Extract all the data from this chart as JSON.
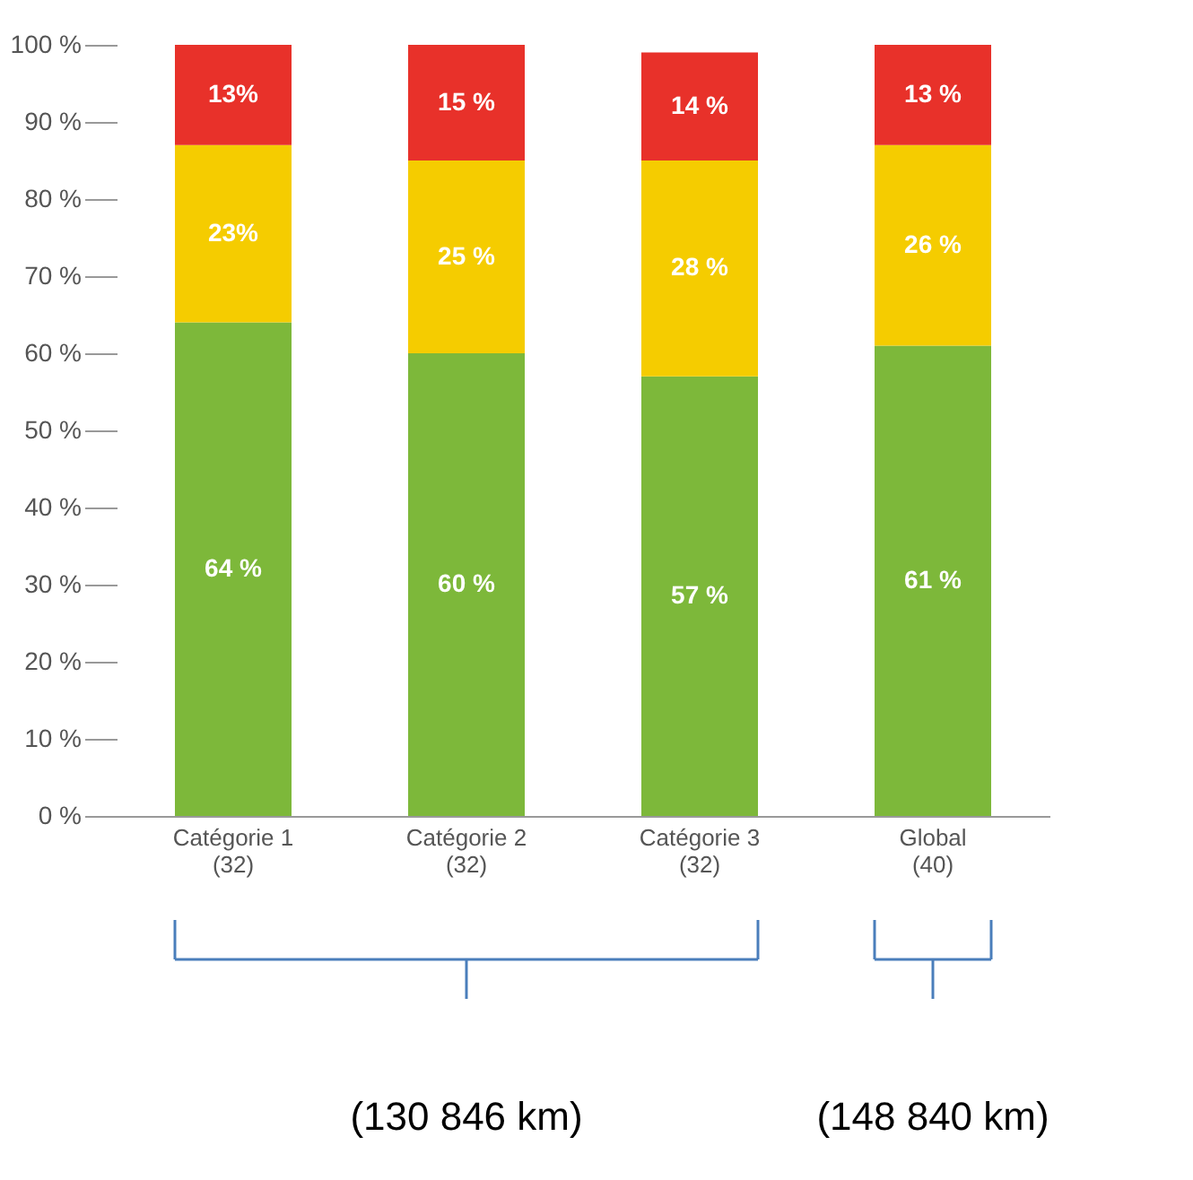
{
  "chart_data": {
    "type": "bar",
    "stacked": true,
    "categories": [
      "Catégorie 1\n(32)",
      "Catégorie 2\n(32)",
      "Catégorie 3\n(32)",
      "Global\n(40)"
    ],
    "series": [
      {
        "color": "#7db83a",
        "values": [
          64,
          60,
          57,
          61
        ]
      },
      {
        "color": "#f5cc00",
        "values": [
          23,
          25,
          28,
          26
        ]
      },
      {
        "color": "#e8312a",
        "values": [
          13,
          15,
          14,
          13
        ]
      }
    ],
    "value_labels": [
      [
        "64 %",
        "60 %",
        "57 %",
        "61 %"
      ],
      [
        "23%",
        "25 %",
        "28 %",
        "26 %"
      ],
      [
        "13%",
        "15 %",
        "14 %",
        "13 %"
      ]
    ],
    "ylim": [
      0,
      100
    ],
    "yticks": [
      {
        "value": 0,
        "label": "0 %"
      },
      {
        "value": 10,
        "label": "10 %"
      },
      {
        "value": 20,
        "label": "20 %"
      },
      {
        "value": 30,
        "label": "30 %"
      },
      {
        "value": 40,
        "label": "40 %"
      },
      {
        "value": 50,
        "label": "50 %"
      },
      {
        "value": 60,
        "label": "60 %"
      },
      {
        "value": 70,
        "label": "70 %"
      },
      {
        "value": 80,
        "label": "80 %"
      },
      {
        "value": 90,
        "label": "90 %"
      },
      {
        "value": 100,
        "label": "100 %"
      }
    ],
    "grid": false,
    "annotations": [
      "(130 846 km)",
      "(148 840 km)"
    ]
  }
}
